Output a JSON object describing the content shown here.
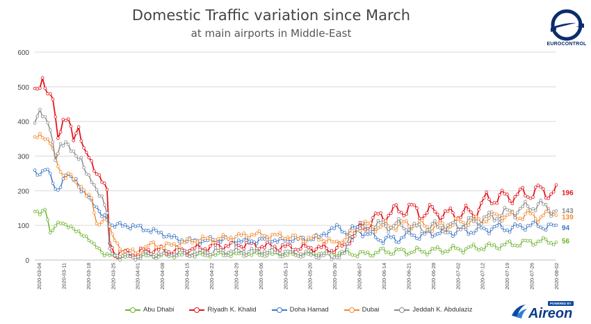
{
  "header": {
    "title": "Domestic Traffic variation since March",
    "subtitle": "at main airports in Middle-East"
  },
  "logo": {
    "text": "EUROCONTROL"
  },
  "branding": {
    "powered_label": "POWERED BY",
    "name": "Aireon"
  },
  "chart_data": {
    "type": "line",
    "ylim": [
      0,
      600
    ],
    "yticks": [
      0,
      100,
      200,
      300,
      400,
      500,
      600
    ],
    "grid": true,
    "legend_position": "bottom",
    "xticks": [
      "2020-03-04",
      "2020-03-11",
      "2020-03-18",
      "2020-03-25",
      "2020-04-01",
      "2020-04-08",
      "2020-04-15",
      "2020-04-22",
      "2020-04-29",
      "2020-05-06",
      "2020-05-13",
      "2020-05-20",
      "2020-05-30",
      "2020-06-07",
      "2020-06-14",
      "2020-06-21",
      "2020-06-28",
      "2020-07-02",
      "2020-07-12",
      "2020-07-19",
      "2020-07-26",
      "2020-08-02"
    ],
    "series": [
      {
        "name": "Abu Dhabi",
        "color": "#6ab42d",
        "end_label": "56",
        "anchors": [
          [
            0,
            140
          ],
          [
            2,
            135
          ],
          [
            4,
            145
          ],
          [
            5,
            120
          ],
          [
            6,
            75
          ],
          [
            8,
            100
          ],
          [
            10,
            110
          ],
          [
            12,
            100
          ],
          [
            14,
            95
          ],
          [
            16,
            85
          ],
          [
            18,
            75
          ],
          [
            20,
            65
          ],
          [
            21,
            60
          ],
          [
            22,
            50
          ],
          [
            24,
            40
          ],
          [
            25,
            30
          ],
          [
            27,
            15
          ],
          [
            30,
            12
          ],
          [
            35,
            12
          ],
          [
            40,
            13
          ],
          [
            50,
            14
          ],
          [
            60,
            15
          ],
          [
            70,
            16
          ],
          [
            80,
            17
          ],
          [
            90,
            17
          ],
          [
            100,
            16
          ],
          [
            110,
            18
          ],
          [
            120,
            19
          ],
          [
            122,
            20
          ],
          [
            126,
            18
          ],
          [
            128,
            15
          ],
          [
            130,
            20
          ],
          [
            135,
            25
          ],
          [
            140,
            25
          ],
          [
            145,
            25
          ],
          [
            150,
            25
          ],
          [
            155,
            28
          ],
          [
            160,
            30
          ],
          [
            165,
            32
          ],
          [
            170,
            35
          ],
          [
            175,
            38
          ],
          [
            180,
            42
          ],
          [
            185,
            46
          ],
          [
            190,
            50
          ],
          [
            195,
            55
          ],
          [
            200,
            52
          ],
          [
            202,
            56
          ]
        ],
        "noise": 4,
        "wiggle": 8
      },
      {
        "name": "Riyadh K. Khalid",
        "color": "#e3141b",
        "end_label": "196",
        "anchors": [
          [
            0,
            490
          ],
          [
            2,
            500
          ],
          [
            3,
            520
          ],
          [
            5,
            480
          ],
          [
            7,
            470
          ],
          [
            9,
            350
          ],
          [
            11,
            400
          ],
          [
            13,
            410
          ],
          [
            15,
            350
          ],
          [
            17,
            380
          ],
          [
            19,
            320
          ],
          [
            21,
            300
          ],
          [
            23,
            260
          ],
          [
            25,
            240
          ],
          [
            27,
            220
          ],
          [
            28,
            200
          ],
          [
            29,
            50
          ],
          [
            31,
            20
          ],
          [
            35,
            20
          ],
          [
            40,
            20
          ],
          [
            45,
            30
          ],
          [
            55,
            25
          ],
          [
            60,
            30
          ],
          [
            65,
            35
          ],
          [
            70,
            40
          ],
          [
            80,
            45
          ],
          [
            90,
            40
          ],
          [
            100,
            35
          ],
          [
            110,
            35
          ],
          [
            115,
            30
          ],
          [
            120,
            40
          ],
          [
            122,
            70
          ],
          [
            125,
            80
          ],
          [
            130,
            110
          ],
          [
            135,
            130
          ],
          [
            140,
            140
          ],
          [
            145,
            150
          ],
          [
            150,
            135
          ],
          [
            155,
            140
          ],
          [
            160,
            130
          ],
          [
            165,
            135
          ],
          [
            170,
            135
          ],
          [
            175,
            175
          ],
          [
            180,
            180
          ],
          [
            185,
            185
          ],
          [
            190,
            190
          ],
          [
            195,
            200
          ],
          [
            200,
            195
          ],
          [
            202,
            196
          ]
        ],
        "noise": 6,
        "wiggle": 18
      },
      {
        "name": "Doha Hamad",
        "color": "#3d76c8",
        "end_label": "94",
        "anchors": [
          [
            0,
            255
          ],
          [
            2,
            245
          ],
          [
            4,
            265
          ],
          [
            6,
            250
          ],
          [
            8,
            200
          ],
          [
            10,
            210
          ],
          [
            12,
            250
          ],
          [
            14,
            240
          ],
          [
            16,
            230
          ],
          [
            18,
            200
          ],
          [
            20,
            190
          ],
          [
            22,
            170
          ],
          [
            24,
            150
          ],
          [
            26,
            130
          ],
          [
            28,
            120
          ],
          [
            30,
            100
          ],
          [
            35,
            100
          ],
          [
            40,
            95
          ],
          [
            45,
            85
          ],
          [
            50,
            75
          ],
          [
            55,
            60
          ],
          [
            60,
            55
          ],
          [
            65,
            55
          ],
          [
            70,
            60
          ],
          [
            75,
            60
          ],
          [
            80,
            55
          ],
          [
            85,
            55
          ],
          [
            90,
            60
          ],
          [
            95,
            55
          ],
          [
            100,
            60
          ],
          [
            105,
            60
          ],
          [
            110,
            65
          ],
          [
            115,
            90
          ],
          [
            118,
            95
          ],
          [
            120,
            80
          ],
          [
            125,
            90
          ],
          [
            130,
            70
          ],
          [
            135,
            60
          ],
          [
            140,
            60
          ],
          [
            145,
            75
          ],
          [
            150,
            70
          ],
          [
            155,
            80
          ],
          [
            160,
            80
          ],
          [
            165,
            85
          ],
          [
            170,
            85
          ],
          [
            175,
            90
          ],
          [
            180,
            95
          ],
          [
            185,
            90
          ],
          [
            190,
            100
          ],
          [
            195,
            100
          ],
          [
            200,
            95
          ],
          [
            202,
            94
          ]
        ],
        "noise": 5,
        "wiggle": 10
      },
      {
        "name": "Dubai",
        "color": "#f28a2e",
        "end_label": "139",
        "anchors": [
          [
            0,
            355
          ],
          [
            2,
            360
          ],
          [
            4,
            350
          ],
          [
            6,
            340
          ],
          [
            8,
            300
          ],
          [
            10,
            250
          ],
          [
            12,
            240
          ],
          [
            14,
            250
          ],
          [
            16,
            220
          ],
          [
            18,
            210
          ],
          [
            20,
            190
          ],
          [
            22,
            180
          ],
          [
            24,
            100
          ],
          [
            26,
            110
          ],
          [
            28,
            120
          ],
          [
            30,
            70
          ],
          [
            32,
            40
          ],
          [
            35,
            25
          ],
          [
            40,
            20
          ],
          [
            45,
            45
          ],
          [
            50,
            40
          ],
          [
            55,
            45
          ],
          [
            60,
            55
          ],
          [
            65,
            60
          ],
          [
            70,
            60
          ],
          [
            75,
            65
          ],
          [
            80,
            70
          ],
          [
            85,
            75
          ],
          [
            90,
            70
          ],
          [
            95,
            70
          ],
          [
            100,
            65
          ],
          [
            105,
            60
          ],
          [
            110,
            65
          ],
          [
            115,
            50
          ],
          [
            120,
            55
          ],
          [
            122,
            70
          ],
          [
            125,
            95
          ],
          [
            130,
            100
          ],
          [
            135,
            95
          ],
          [
            140,
            100
          ],
          [
            145,
            105
          ],
          [
            150,
            100
          ],
          [
            155,
            95
          ],
          [
            160,
            100
          ],
          [
            165,
            110
          ],
          [
            170,
            110
          ],
          [
            175,
            120
          ],
          [
            180,
            130
          ],
          [
            185,
            125
          ],
          [
            190,
            130
          ],
          [
            195,
            125
          ],
          [
            200,
            135
          ],
          [
            202,
            139
          ]
        ],
        "noise": 5,
        "wiggle": 12
      },
      {
        "name": "Jeddah K. Abdulaziz",
        "color": "#8a8a8a",
        "end_label": "143",
        "anchors": [
          [
            0,
            400
          ],
          [
            2,
            430
          ],
          [
            4,
            410
          ],
          [
            6,
            380
          ],
          [
            8,
            290
          ],
          [
            10,
            330
          ],
          [
            12,
            340
          ],
          [
            14,
            320
          ],
          [
            16,
            300
          ],
          [
            18,
            290
          ],
          [
            20,
            250
          ],
          [
            22,
            230
          ],
          [
            24,
            200
          ],
          [
            26,
            180
          ],
          [
            28,
            140
          ],
          [
            29,
            20
          ],
          [
            31,
            15
          ],
          [
            35,
            10
          ],
          [
            40,
            10
          ],
          [
            45,
            15
          ],
          [
            50,
            15
          ],
          [
            55,
            20
          ],
          [
            60,
            20
          ],
          [
            65,
            20
          ],
          [
            70,
            25
          ],
          [
            80,
            25
          ],
          [
            90,
            25
          ],
          [
            100,
            20
          ],
          [
            110,
            15
          ],
          [
            115,
            10
          ],
          [
            120,
            15
          ],
          [
            122,
            70
          ],
          [
            125,
            85
          ],
          [
            130,
            95
          ],
          [
            135,
            100
          ],
          [
            140,
            100
          ],
          [
            145,
            95
          ],
          [
            150,
            90
          ],
          [
            155,
            95
          ],
          [
            160,
            95
          ],
          [
            165,
            100
          ],
          [
            170,
            110
          ],
          [
            175,
            120
          ],
          [
            180,
            130
          ],
          [
            185,
            140
          ],
          [
            190,
            150
          ],
          [
            195,
            160
          ],
          [
            200,
            145
          ],
          [
            202,
            143
          ]
        ],
        "noise": 6,
        "wiggle": 14
      }
    ]
  }
}
